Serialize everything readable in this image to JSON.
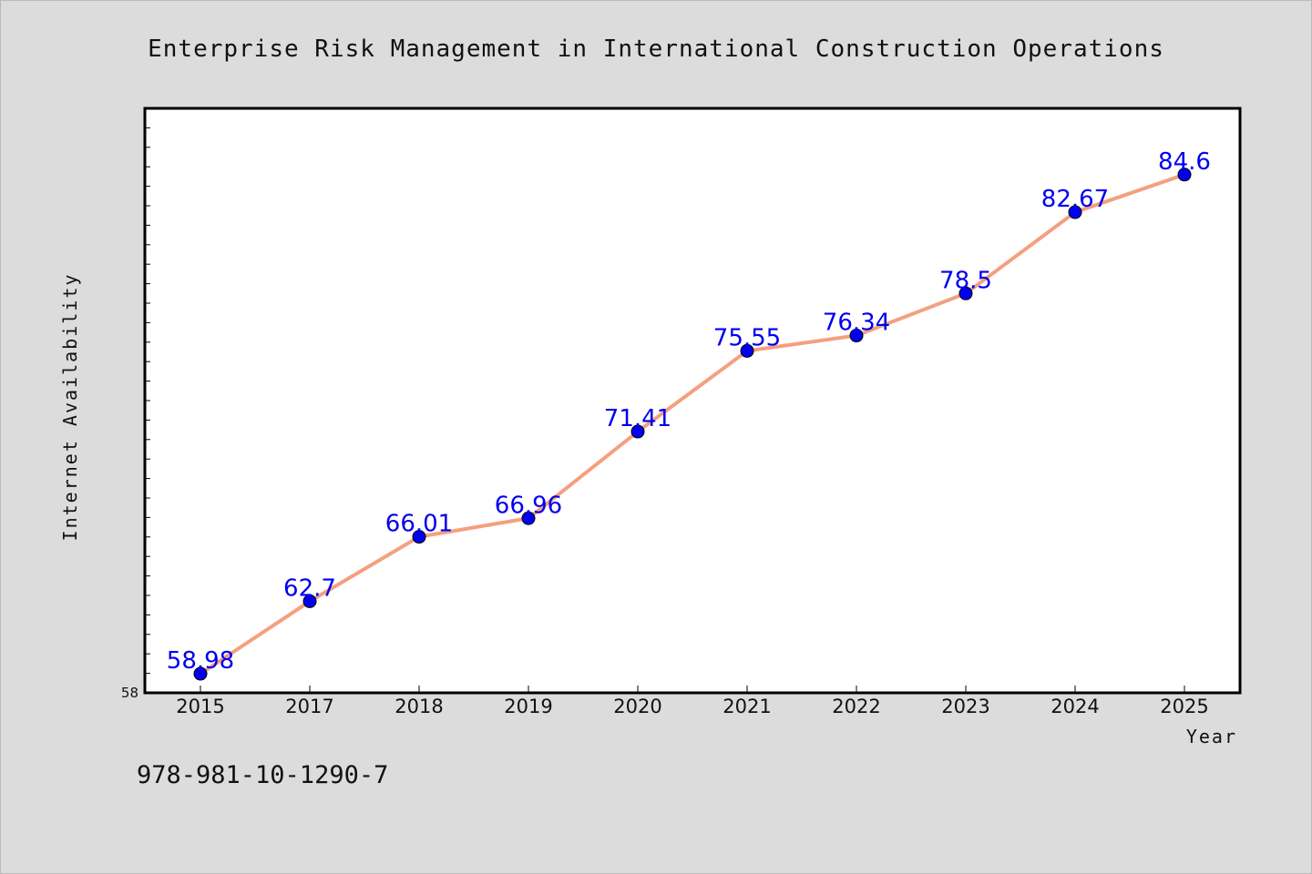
{
  "chart_data": {
    "type": "line",
    "title": "Enterprise Risk Management in International Construction Operations",
    "xlabel": "Year",
    "ylabel": "Internet Availability",
    "categories": [
      "2015",
      "2017",
      "2018",
      "2019",
      "2020",
      "2021",
      "2022",
      "2023",
      "2024",
      "2025"
    ],
    "values": [
      58.98,
      62.7,
      66.01,
      66.96,
      71.41,
      75.55,
      76.34,
      78.5,
      82.67,
      84.6
    ],
    "data_labels": [
      "58.98",
      "62.7",
      "66.01",
      "66.96",
      "71.41",
      "75.55",
      "76.34",
      "78.5",
      "82.67",
      "84.6"
    ],
    "ylim": [
      58,
      88
    ],
    "y_tick_label": "58",
    "grid": false,
    "line_color": "#f4a080",
    "marker_color": "#0000ee"
  },
  "footer": {
    "isbn": "978-981-10-1290-7"
  }
}
